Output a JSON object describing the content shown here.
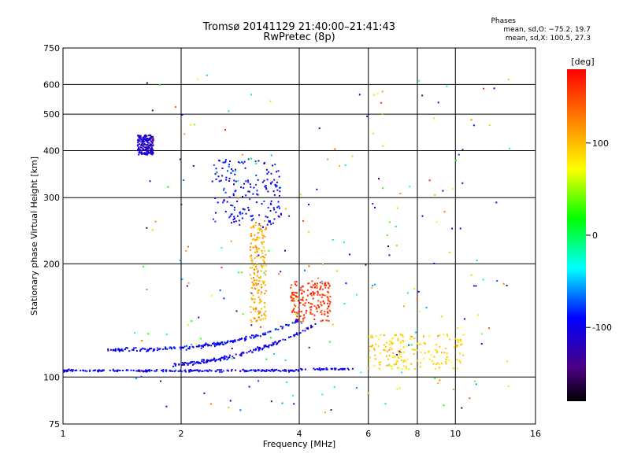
{
  "figure": {
    "title_line1": "Tromsø 20141129 21:40:00–21:41:43",
    "title_line2": "RwPretec (8p)",
    "phase_header": "Phases",
    "phase_line1": "mean, sd,O: −75.2, 19.7",
    "phase_line2": "mean, sd,X: 100.5, 27.3"
  },
  "chart_data": {
    "type": "scatter",
    "xlabel": "Frequency [MHz]",
    "ylabel": "Stationary phase Virtual Height [km]",
    "x_scale": "log",
    "y_scale": "log",
    "xlim": [
      1,
      16
    ],
    "ylim": [
      75,
      750
    ],
    "x_ticks": [
      1,
      2,
      4,
      6,
      8,
      10,
      16
    ],
    "y_ticks": [
      75,
      100,
      200,
      300,
      400,
      500,
      600,
      750
    ],
    "x_grid": [
      2,
      4,
      6,
      8,
      10
    ],
    "y_grid": [
      100,
      200,
      300,
      400,
      500,
      600
    ],
    "colorbar": {
      "label": "[deg]",
      "ticks": [
        100,
        0,
        -100
      ],
      "range": [
        -180,
        180
      ],
      "colormap": "rainbow"
    },
    "point_clusters": [
      {
        "name": "F-trace lower",
        "f_range": [
          1.0,
          5.5
        ],
        "h": 104,
        "phase": -100
      },
      {
        "name": "high F blob 1.6MHz",
        "f_range": [
          1.55,
          1.7
        ],
        "h_range": [
          390,
          440
        ],
        "phase": -115
      },
      {
        "name": "echo cluster 2.5-3.5MHz",
        "f_range": [
          2.4,
          3.6
        ],
        "h_range": [
          250,
          380
        ],
        "phase": -95
      },
      {
        "name": "X-mode 3-4MHz",
        "f_range": [
          3.0,
          3.3
        ],
        "h_range": [
          140,
          260
        ],
        "phase": 110
      },
      {
        "name": "X-mode 4-5MHz",
        "f_range": [
          3.8,
          4.8
        ],
        "h_range": [
          140,
          180
        ],
        "phase": 160
      },
      {
        "name": "E-ish 6-10MHz",
        "f_range": [
          6.0,
          10.5
        ],
        "h_range": [
          105,
          130
        ],
        "phase": 90
      }
    ]
  }
}
